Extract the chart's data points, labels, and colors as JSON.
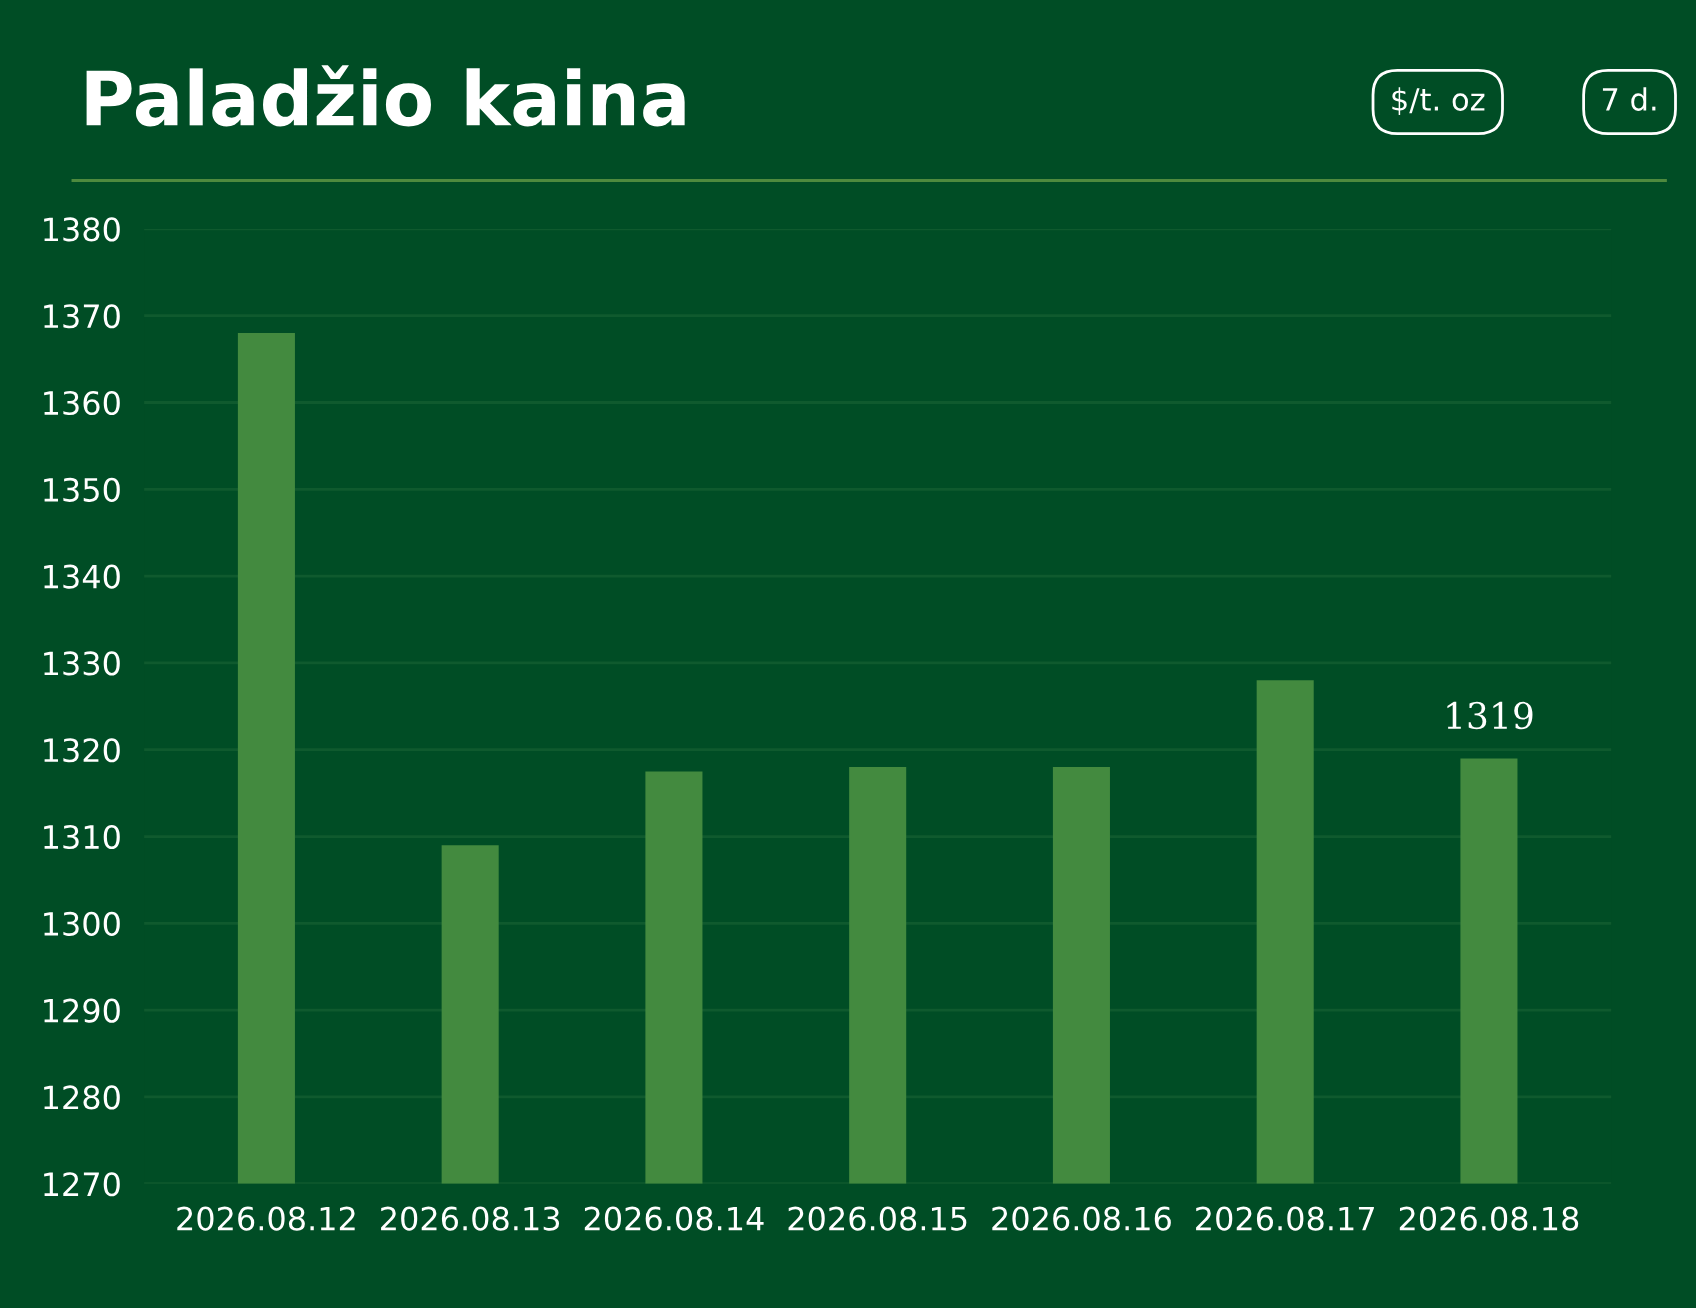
{
  "chart_data": {
    "type": "bar",
    "title": "Paladžio kaina",
    "annotations": [
      "$/t. oz",
      "7 d."
    ],
    "categories": [
      "2026.08.12",
      "2026.08.13",
      "2026.08.14",
      "2026.08.15",
      "2026.08.16",
      "2026.08.17",
      "2026.08.18"
    ],
    "values": [
      1368,
      1309,
      1317.5,
      1318,
      1318,
      1328,
      1319
    ],
    "value_labels": [
      null,
      null,
      null,
      null,
      null,
      null,
      "1319"
    ],
    "color": "#438a3f",
    "ylim": [
      1270,
      1380
    ],
    "yticks": [
      1270,
      1280,
      1290,
      1300,
      1310,
      1320,
      1330,
      1340,
      1350,
      1360,
      1370,
      1380
    ],
    "grid": "y"
  }
}
